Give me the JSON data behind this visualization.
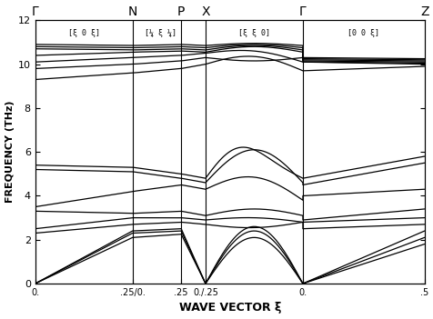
{
  "ylabel": "FREQUENCY (THz)",
  "xlabel": "WAVE VECTOR ξ",
  "ylim": [
    0,
    12
  ],
  "yticks": [
    0,
    2,
    4,
    6,
    8,
    10,
    12
  ],
  "high_sym_labels": [
    "Γ",
    "N",
    "P",
    "X",
    "Γ",
    "Z"
  ],
  "xtick_labels": [
    "0.",
    ".25/0.",
    ".25",
    "0./.25",
    "0.",
    ".5"
  ],
  "segment_labels": [
    "[ξ 0 ξ]",
    "[¼ ξ ¼]",
    "[ξ ξ 0]",
    "[0 0 ξ]"
  ],
  "background_color": "#ffffff",
  "line_color": "#000000",
  "line_width": 0.9
}
